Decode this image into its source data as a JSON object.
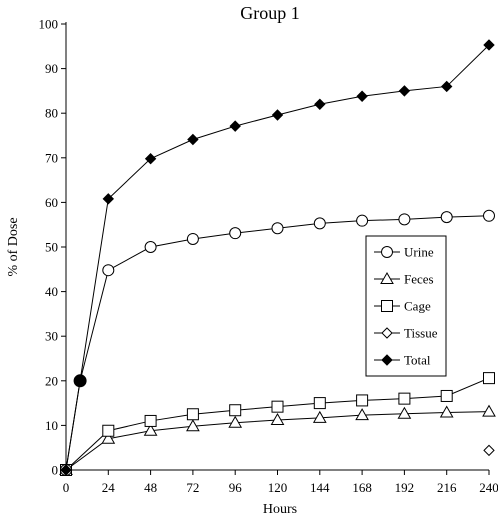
{
  "chart_data": {
    "type": "line",
    "title": "Group 1",
    "xlabel": "Hours",
    "ylabel": "% of Dose",
    "xlim": [
      0,
      240
    ],
    "ylim": [
      0,
      100
    ],
    "xticks": [
      0,
      24,
      48,
      72,
      96,
      120,
      144,
      168,
      192,
      216,
      240
    ],
    "yticks": [
      0,
      10,
      20,
      30,
      40,
      50,
      60,
      70,
      80,
      90,
      100
    ],
    "grid": false,
    "legend_position": "right",
    "series": [
      {
        "name": "Urine",
        "marker": "circle",
        "filled": false,
        "x": [
          0,
          8,
          24,
          48,
          72,
          96,
          120,
          144,
          168,
          192,
          216,
          240
        ],
        "y": [
          0,
          20,
          44.8,
          50,
          51.8,
          53.1,
          54.2,
          55.3,
          55.9,
          56.2,
          56.7,
          57
        ]
      },
      {
        "name": "Feces",
        "marker": "triangle",
        "filled": false,
        "x": [
          0,
          24,
          48,
          72,
          96,
          120,
          144,
          168,
          192,
          216,
          240
        ],
        "y": [
          0,
          7,
          8.8,
          9.8,
          10.6,
          11.2,
          11.7,
          12.3,
          12.6,
          12.9,
          13.1
        ]
      },
      {
        "name": "Cage",
        "marker": "square",
        "filled": false,
        "x": [
          0,
          24,
          48,
          72,
          96,
          120,
          144,
          168,
          192,
          216,
          240
        ],
        "y": [
          0,
          8.8,
          11,
          12.5,
          13.4,
          14.2,
          15,
          15.6,
          16,
          16.6,
          20.6
        ]
      },
      {
        "name": "Tissue",
        "marker": "diamond",
        "filled": false,
        "line": false,
        "x": [
          240
        ],
        "y": [
          4.4
        ]
      },
      {
        "name": "Total",
        "marker": "diamond",
        "filled": true,
        "x": [
          0,
          8,
          24,
          48,
          72,
          96,
          120,
          144,
          168,
          192,
          216,
          240
        ],
        "y": [
          0,
          20,
          60.8,
          69.8,
          74.1,
          77.1,
          79.6,
          82,
          83.8,
          85,
          86,
          95.3
        ]
      }
    ]
  }
}
